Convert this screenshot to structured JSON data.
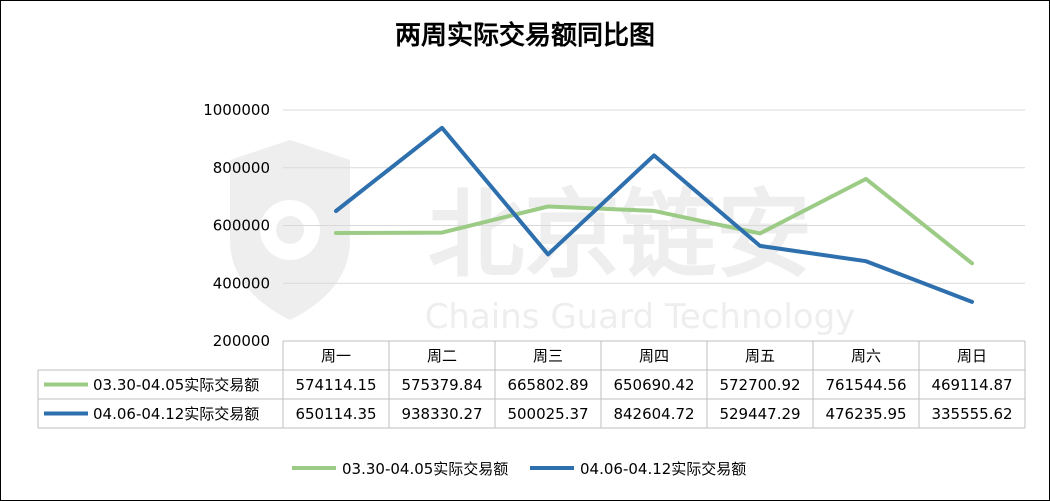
{
  "watermark": {
    "cn": "北京链安",
    "en": "Chains Guard Technology",
    "logo": "shield-logo"
  },
  "colors": {
    "series1": "#9ccb86",
    "series2": "#2e6fad",
    "grid": "#d9d9d9",
    "table_border": "#bfbfbf"
  },
  "chart_data": {
    "type": "line",
    "title": "两周实际交易额同比图",
    "categories": [
      "周一",
      "周二",
      "周三",
      "周四",
      "周五",
      "周六",
      "周日"
    ],
    "ylim": [
      200000,
      1000000
    ],
    "yticks": [
      200000,
      400000,
      600000,
      800000,
      1000000
    ],
    "ytick_labels": [
      "200000",
      "400000",
      "600000",
      "800000",
      "1000000"
    ],
    "grid": true,
    "legend_position": "bottom",
    "data_table": true,
    "series": [
      {
        "name": "03.30-04.05实际交易额",
        "values": [
          574114.15,
          575379.84,
          665802.89,
          650690.42,
          572700.92,
          761544.56,
          469114.87
        ],
        "labels": [
          "574114.15",
          "575379.84",
          "665802.89",
          "650690.42",
          "572700.92",
          "761544.56",
          "469114.87"
        ]
      },
      {
        "name": "04.06-04.12实际交易额",
        "values": [
          650114.35,
          938330.27,
          500025.37,
          842604.72,
          529447.29,
          476235.95,
          335555.62
        ],
        "labels": [
          "650114.35",
          "938330.27",
          "500025.37",
          "842604.72",
          "529447.29",
          "476235.95",
          "335555.62"
        ]
      }
    ]
  }
}
